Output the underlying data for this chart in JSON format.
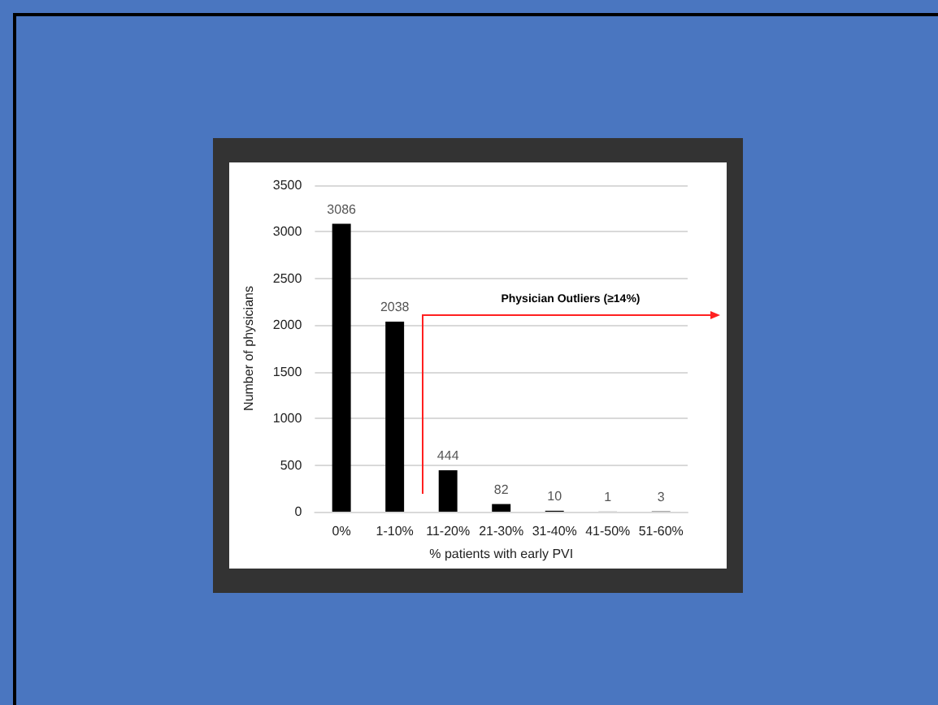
{
  "chart_data": {
    "type": "bar",
    "xlabel": "% patients with early PVI",
    "ylabel": "Number of physicians",
    "categories": [
      "0%",
      "1-10%",
      "11-20%",
      "21-30%",
      "31-40%",
      "41-50%",
      "51-60%"
    ],
    "values": [
      3086,
      2038,
      444,
      82,
      10,
      1,
      3
    ],
    "color": "#000000",
    "ylim": [
      0,
      3500
    ],
    "yticks": [
      0,
      500,
      1000,
      1500,
      2000,
      2500,
      3000,
      3500
    ],
    "grid": "y",
    "data_labels": true,
    "annotations": [
      "Physician Outliers (≥14%)"
    ]
  }
}
